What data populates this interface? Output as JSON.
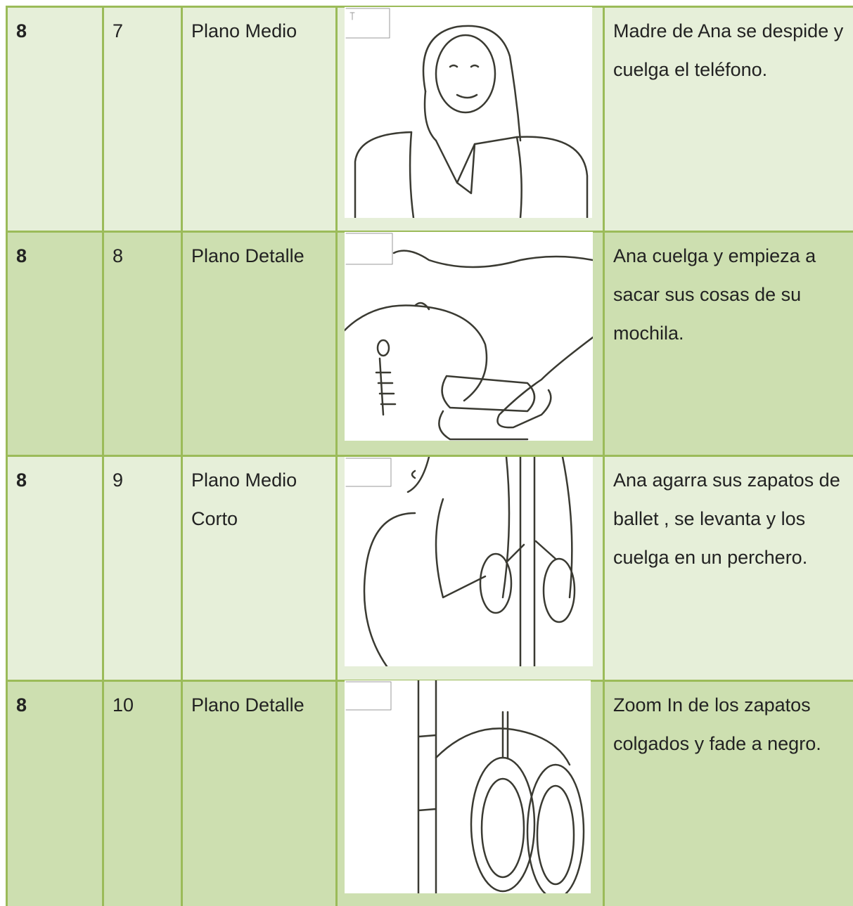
{
  "table": {
    "rows": [
      [
        "8",
        "7",
        "Plano Medio",
        "Madre de Ana se despide y cuelga el teléfono."
      ],
      [
        "8",
        "8",
        "Plano Detalle",
        "Ana cuelga y empieza a sacar sus cosas de su mochila."
      ],
      [
        "8",
        "9",
        "Plano Medio Corto",
        "Ana agarra sus zapatos de ballet , se levanta y los cuelga en un perchero."
      ],
      [
        "8",
        "10",
        "Plano Detalle",
        "Zoom In de los zapatos colgados y fade a negro."
      ]
    ]
  }
}
